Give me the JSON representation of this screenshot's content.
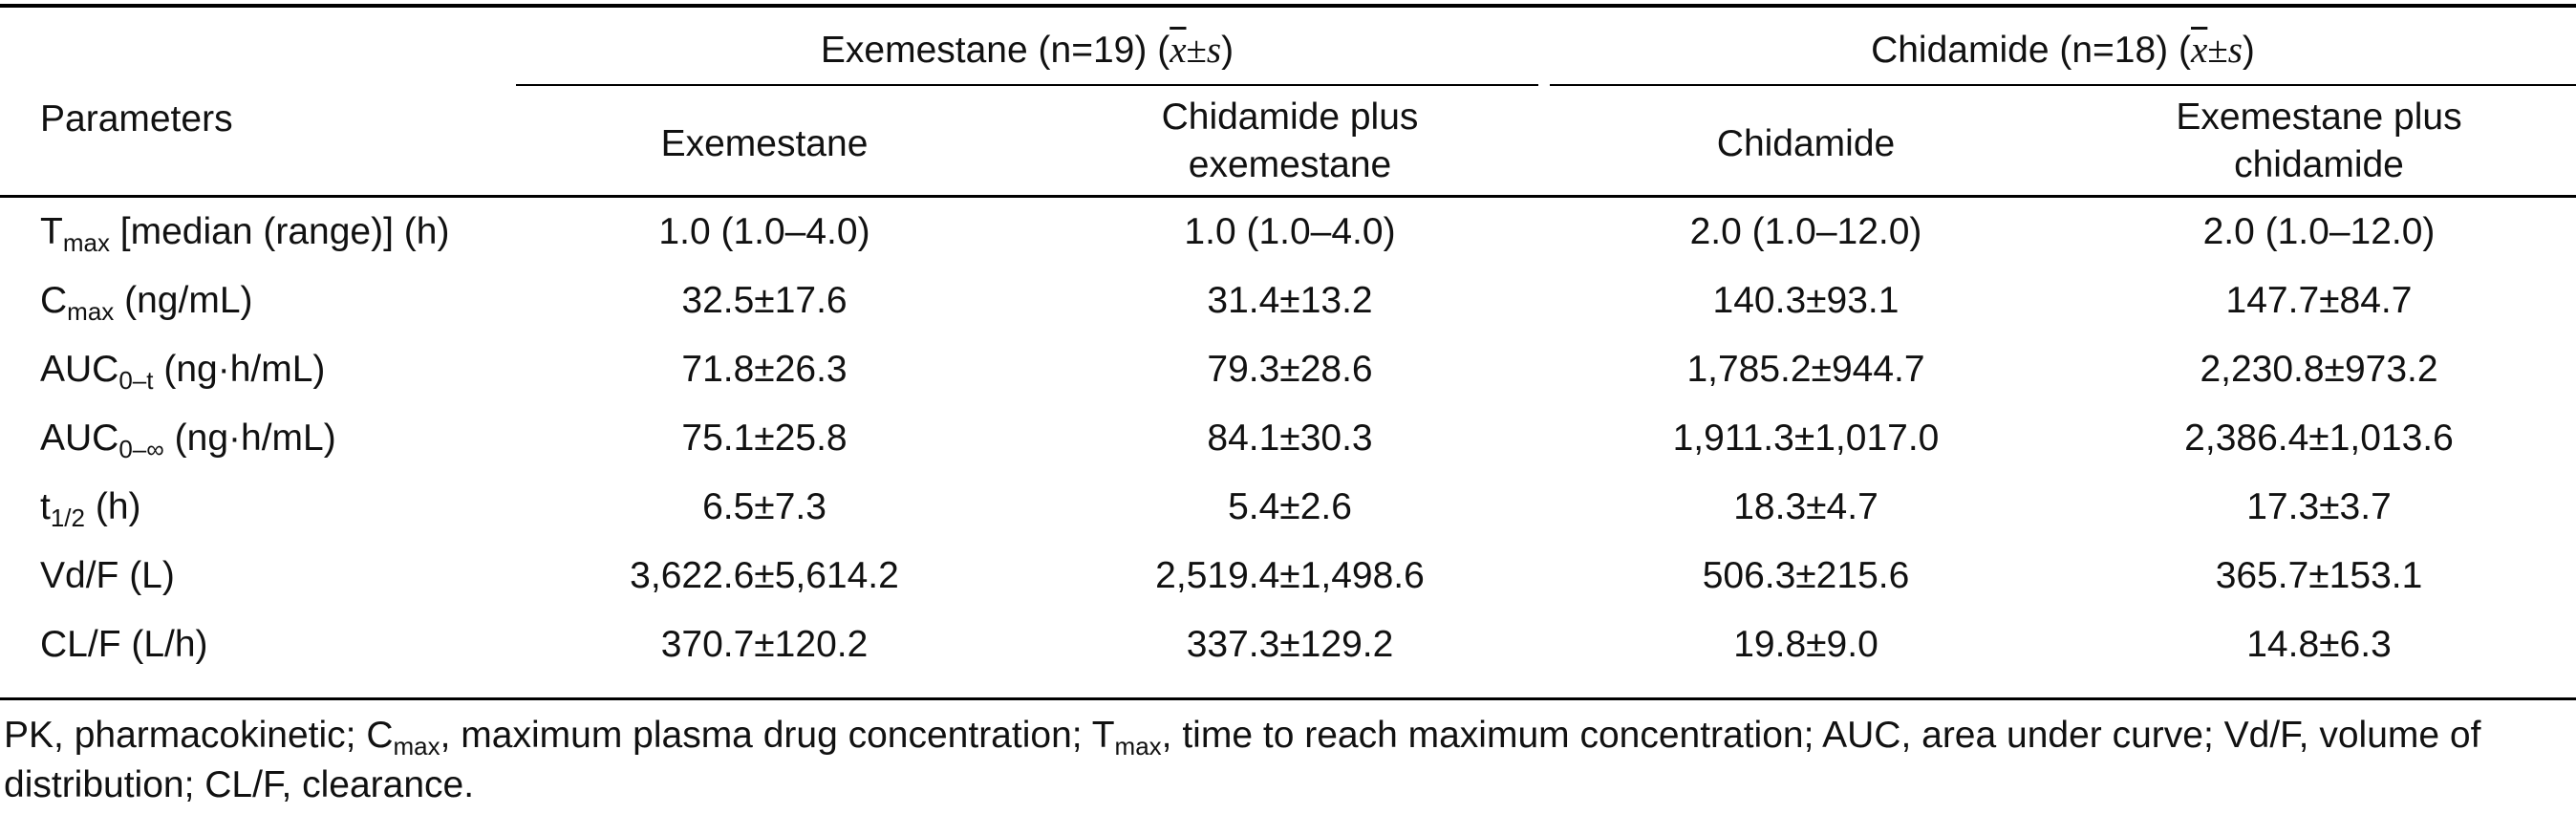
{
  "header": {
    "parameters_label": "Parameters",
    "group1": {
      "name": "Exemestane (n=19)",
      "stat_open": "(",
      "stat_xbar": "x",
      "stat_pm": "±",
      "stat_s": "s",
      "stat_close": ")"
    },
    "group2": {
      "name": "Chidamide (n=18)",
      "stat_open": "(",
      "stat_xbar": "x",
      "stat_pm": "±",
      "stat_s": "s",
      "stat_close": ")"
    },
    "columns": [
      "Exemestane",
      "Chidamide plus exemestane",
      "Chidamide",
      "Exemestane plus chidamide"
    ]
  },
  "rows": [
    {
      "param": "T",
      "sub": "max",
      "suffix": " [median (range)] (h)",
      "values": [
        "1.0 (1.0–4.0)",
        "1.0 (1.0–4.0)",
        "2.0 (1.0–12.0)",
        "2.0 (1.0–12.0)"
      ]
    },
    {
      "param": "C",
      "sub": "max",
      "suffix": " (ng/mL)",
      "values": [
        "32.5±17.6",
        "31.4±13.2",
        "140.3±93.1",
        "147.7±84.7"
      ]
    },
    {
      "param": "AUC",
      "sub": "0–t",
      "suffix": " (ng·h/mL)",
      "values": [
        "71.8±26.3",
        "79.3±28.6",
        "1,785.2±944.7",
        "2,230.8±973.2"
      ]
    },
    {
      "param": "AUC",
      "sub": "0–∞",
      "suffix": " (ng·h/mL)",
      "values": [
        "75.1±25.8",
        "84.1±30.3",
        "1,911.3±1,017.0",
        "2,386.4±1,013.6"
      ]
    },
    {
      "param": "t",
      "sub": "1/2",
      "suffix": " (h)",
      "values": [
        "6.5±7.3",
        "5.4±2.6",
        "18.3±4.7",
        "17.3±3.7"
      ]
    },
    {
      "param": "Vd/F (L)",
      "sub": "",
      "suffix": "",
      "values": [
        "3,622.6±5,614.2",
        "2,519.4±1,498.6",
        "506.3±215.6",
        "365.7±153.1"
      ]
    },
    {
      "param": "CL/F (L/h)",
      "sub": "",
      "suffix": "",
      "values": [
        "370.7±120.2",
        "337.3±129.2",
        "19.8±9.0",
        "14.8±6.3"
      ]
    }
  ],
  "footnote": {
    "p1": "PK, pharmacokinetic; C",
    "s1": "max",
    "p2": ", maximum plasma drug concentration; T",
    "s2": "max",
    "p3": ", time to reach maximum concentration; AUC, area under curve; Vd/F, volume of distribution; CL/F, clearance."
  }
}
